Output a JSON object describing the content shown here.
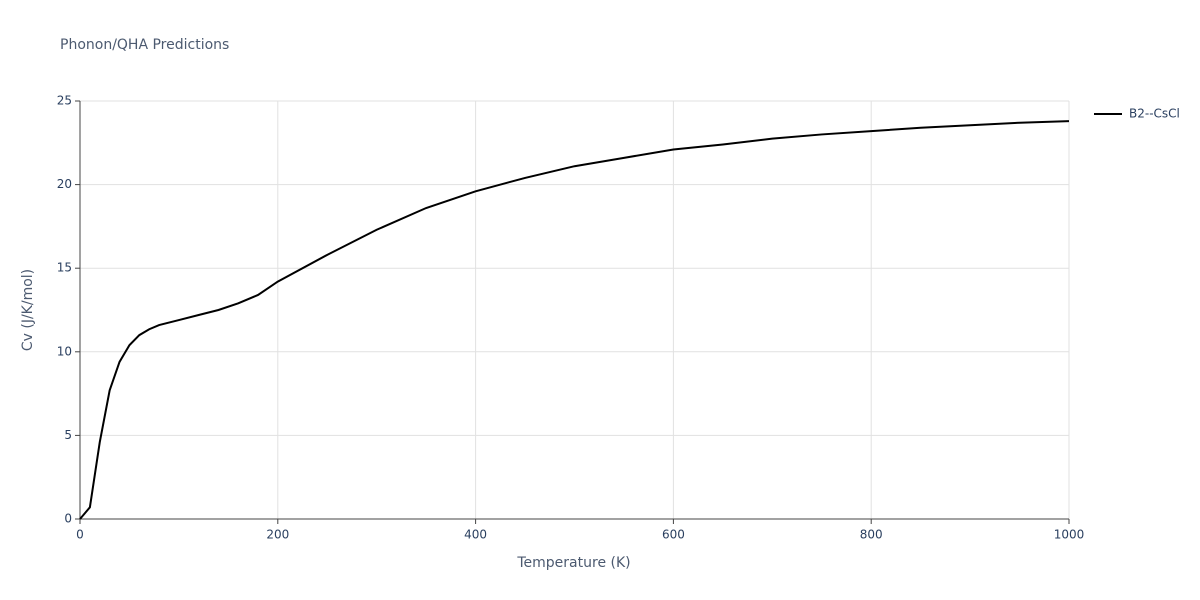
{
  "chart_data": {
    "type": "line",
    "title": "Phonon/QHA Predictions",
    "x_label": "Temperature (K)",
    "y_label": "Cv (J/K/mol)",
    "xlim": [
      0,
      1000
    ],
    "xticks": [
      0,
      200,
      400,
      600,
      800,
      1000
    ],
    "ylim": [
      0,
      25
    ],
    "yticks": [
      0,
      5,
      10,
      15,
      20,
      25
    ],
    "grid": true,
    "legend": "top-right",
    "x": [
      0,
      10,
      20,
      30,
      40,
      50,
      60,
      70,
      80,
      100,
      120,
      140,
      160,
      180,
      200,
      250,
      300,
      350,
      400,
      450,
      500,
      550,
      600,
      650,
      700,
      750,
      800,
      850,
      900,
      950,
      1000
    ],
    "series": [
      {
        "name": "B2--CsCl",
        "color": "#000000",
        "values": [
          0,
          0.7,
          4.6,
          7.7,
          9.4,
          10.4,
          11.0,
          11.35,
          11.6,
          11.9,
          12.2,
          12.5,
          12.9,
          13.4,
          14.2,
          15.8,
          17.3,
          18.6,
          19.6,
          20.4,
          21.1,
          21.6,
          22.1,
          22.4,
          22.75,
          23.0,
          23.2,
          23.4,
          23.55,
          23.7,
          23.8
        ]
      }
    ]
  }
}
